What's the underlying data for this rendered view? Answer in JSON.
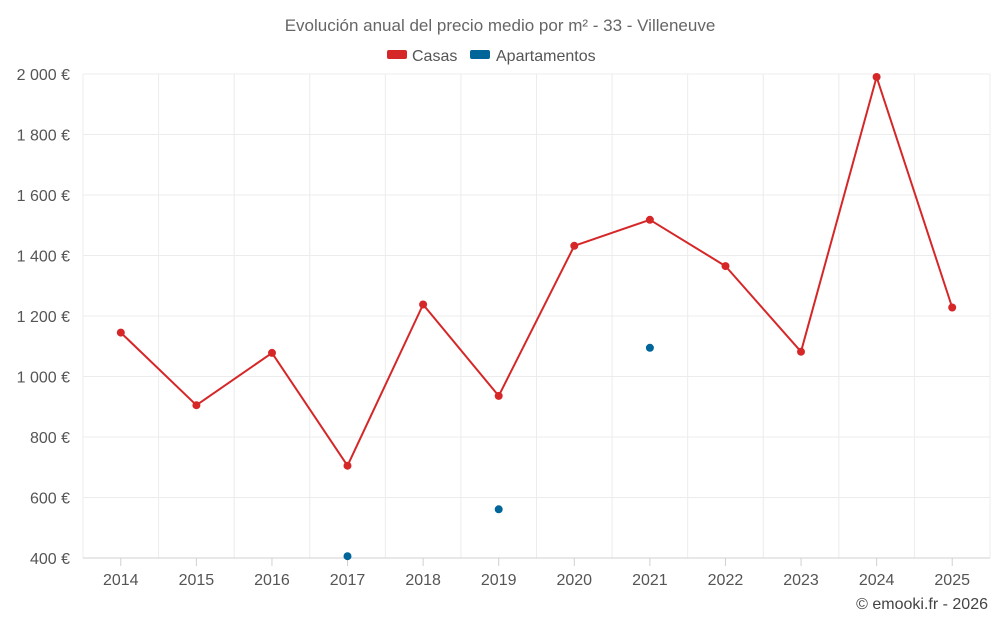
{
  "chart_data": {
    "type": "line",
    "title": "Evolución anual del precio medio por m² - 33 - Villeneuve",
    "categories": [
      "2014",
      "2015",
      "2016",
      "2017",
      "2018",
      "2019",
      "2020",
      "2021",
      "2022",
      "2023",
      "2024",
      "2025"
    ],
    "series": [
      {
        "name": "Casas",
        "color": "#d62728",
        "values": [
          1145,
          905,
          1078,
          705,
          1238,
          936,
          1432,
          1518,
          1365,
          1082,
          1990,
          1228
        ]
      },
      {
        "name": "Apartamentos",
        "color": "#006699",
        "values": [
          null,
          null,
          null,
          406,
          null,
          561,
          null,
          1095,
          null,
          null,
          null,
          null
        ]
      }
    ],
    "ylim": [
      400,
      2000
    ],
    "yticks": [
      400,
      600,
      800,
      1000,
      1200,
      1400,
      1600,
      1800,
      2000
    ],
    "ytick_labels": [
      "400 €",
      "600 €",
      "800 €",
      "1 000 €",
      "1 200 €",
      "1 400 €",
      "1 600 €",
      "1 800 €",
      "2 000 €"
    ],
    "xlabel": "",
    "ylabel": "",
    "grid": true,
    "legend_position": "top-center"
  },
  "credit": "© emooki.fr - 2026"
}
